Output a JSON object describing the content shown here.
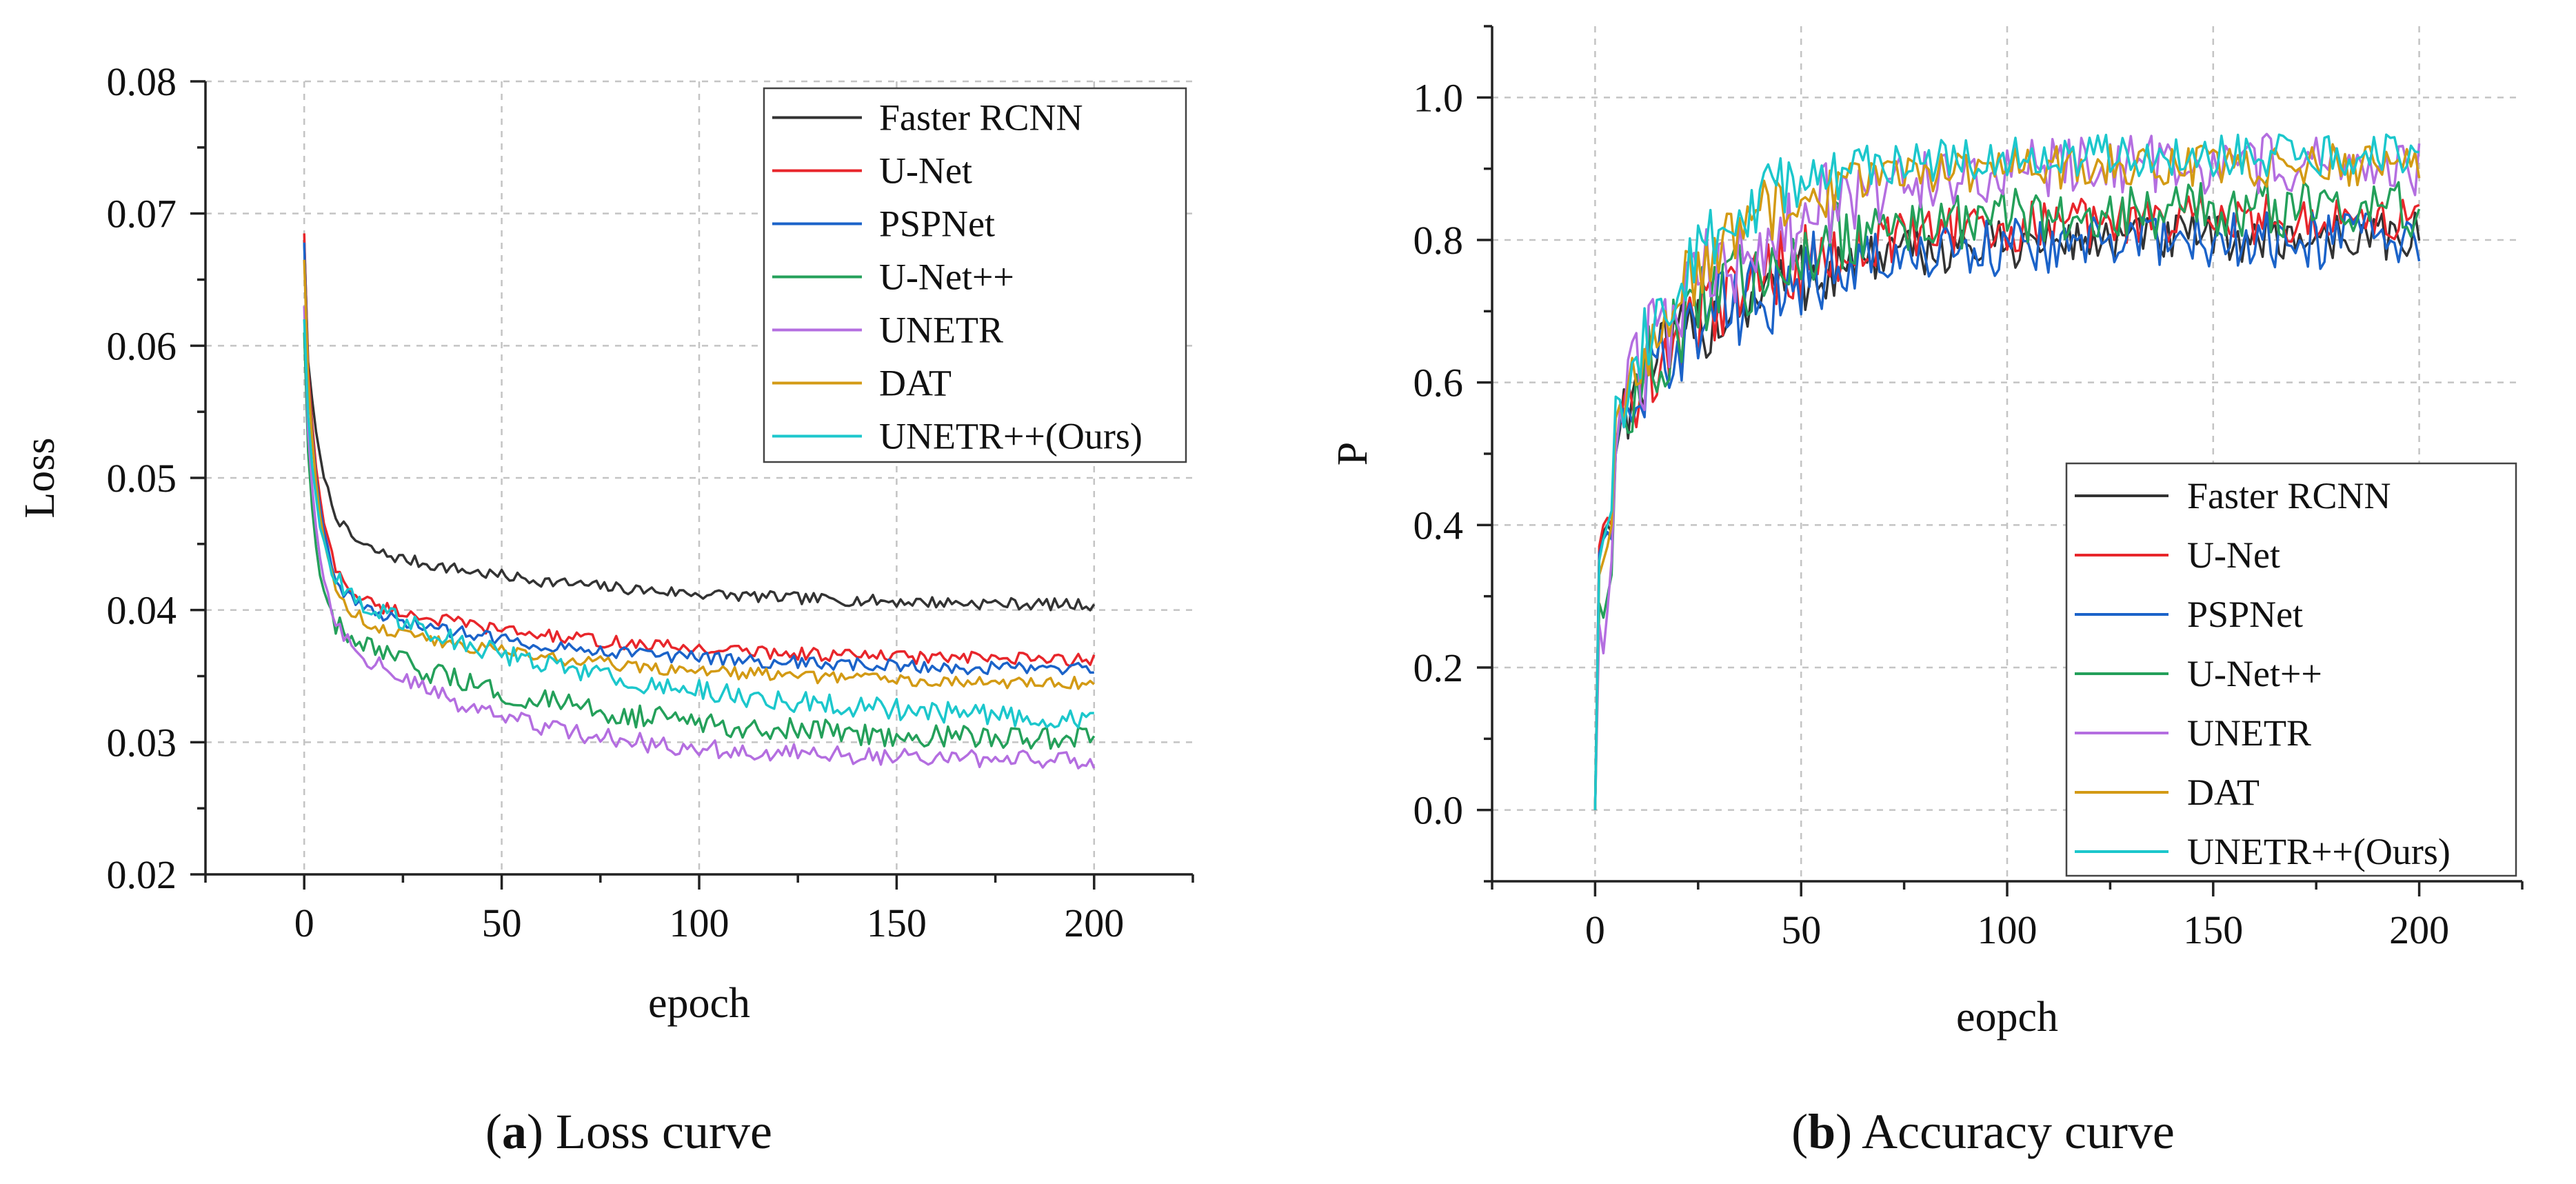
{
  "chart_data": [
    {
      "type": "line",
      "title": "",
      "xlabel": "epoch",
      "ylabel": "Loss",
      "xlim": [
        -25,
        225
      ],
      "ylim": [
        0.02,
        0.08
      ],
      "xticks": [
        0,
        50,
        100,
        150,
        200
      ],
      "yticks": [
        0.02,
        0.03,
        0.04,
        0.05,
        0.06,
        0.07,
        0.08
      ],
      "xtick_labels": [
        "0",
        "50",
        "100",
        "150",
        "200"
      ],
      "ytick_labels": [
        "0.02",
        "0.03",
        "0.04",
        "0.05",
        "0.06",
        "0.07",
        "0.08"
      ],
      "grid": true,
      "legend_position": "top-right",
      "caption": {
        "letter": "a",
        "text": "Loss curve"
      },
      "series": [
        {
          "name": "Faster RCNN",
          "color": "#333333",
          "start": 0.068,
          "k1": 0.017,
          "tau1": 4,
          "k2": 0.0055,
          "tau2": 60,
          "end": 0.0404,
          "noise": 0.00045
        },
        {
          "name": "U-Net",
          "color": "#e8262b",
          "start": 0.0685,
          "k1": 0.022,
          "tau1": 3.5,
          "k2": 0.0058,
          "tau2": 60,
          "end": 0.0362,
          "noise": 0.0005
        },
        {
          "name": "PSPNet",
          "color": "#1b63c9",
          "start": 0.0678,
          "k1": 0.022,
          "tau1": 3.5,
          "k2": 0.0058,
          "tau2": 60,
          "end": 0.0355,
          "noise": 0.0005
        },
        {
          "name": "U-Net++",
          "color": "#24a05a",
          "start": 0.061,
          "k1": 0.019,
          "tau1": 2.5,
          "k2": 0.0095,
          "tau2": 55,
          "end": 0.0302,
          "noise": 0.0009
        },
        {
          "name": "UNETR",
          "color": "#b46ee0",
          "start": 0.063,
          "k1": 0.019,
          "tau1": 3,
          "k2": 0.0115,
          "tau2": 40,
          "end": 0.0287,
          "noise": 0.0007
        },
        {
          "name": "DAT",
          "color": "#d39a14",
          "start": 0.0665,
          "k1": 0.023,
          "tau1": 3.5,
          "k2": 0.006,
          "tau2": 60,
          "end": 0.0345,
          "noise": 0.0005
        },
        {
          "name": "UNETR++(Ours)",
          "color": "#1cc7cc",
          "start": 0.062,
          "k1": 0.017,
          "tau1": 3,
          "k2": 0.0115,
          "tau2": 70,
          "end": 0.0318,
          "noise": 0.0008
        }
      ]
    },
    {
      "type": "line",
      "title": "",
      "xlabel": "eopch",
      "ylabel": "P",
      "xlim": [
        -25,
        225
      ],
      "ylim": [
        -0.1,
        1.1
      ],
      "xticks": [
        0,
        50,
        100,
        150,
        200
      ],
      "yticks": [
        0.0,
        0.2,
        0.4,
        0.6,
        0.8,
        1.0
      ],
      "xtick_labels": [
        "0",
        "50",
        "100",
        "150",
        "200"
      ],
      "ytick_labels": [
        "0.0",
        "0.2",
        "0.4",
        "0.6",
        "0.8",
        "1.0"
      ],
      "grid": true,
      "legend_position": "bottom-right",
      "caption": {
        "letter": "b",
        "text": "Accuracy curve"
      },
      "series": [
        {
          "name": "Faster RCNN",
          "color": "#333333",
          "early": [
            0,
            0.36,
            0.39,
            0.4,
            0.39,
            0.5
          ],
          "target": 0.805,
          "tau": 30,
          "noise": 0.035
        },
        {
          "name": "U-Net",
          "color": "#e8262b",
          "early": [
            0,
            0.37,
            0.4,
            0.41,
            0.4,
            0.52
          ],
          "target": 0.83,
          "tau": 30,
          "noise": 0.035
        },
        {
          "name": "PSPNet",
          "color": "#1b63c9",
          "early": [
            0,
            0.36,
            0.38,
            0.39,
            0.38,
            0.5
          ],
          "target": 0.8,
          "tau": 30,
          "noise": 0.04
        },
        {
          "name": "U-Net++",
          "color": "#24a05a",
          "early": [
            0,
            0.29,
            0.27,
            0.3,
            0.33,
            0.5
          ],
          "target": 0.845,
          "tau": 30,
          "noise": 0.04
        },
        {
          "name": "UNETR",
          "color": "#b46ee0",
          "early": [
            0,
            0.26,
            0.22,
            0.28,
            0.35,
            0.5
          ],
          "target": 0.905,
          "tau": 28,
          "noise": 0.045
        },
        {
          "name": "DAT",
          "color": "#d39a14",
          "early": [
            0,
            0.33,
            0.35,
            0.37,
            0.4,
            0.55
          ],
          "target": 0.905,
          "tau": 22,
          "noise": 0.03
        },
        {
          "name": "UNETR++(Ours)",
          "color": "#1cc7cc",
          "early": [
            0,
            0.35,
            0.38,
            0.4,
            0.42,
            0.58
          ],
          "target": 0.92,
          "tau": 20,
          "noise": 0.03
        }
      ]
    }
  ]
}
